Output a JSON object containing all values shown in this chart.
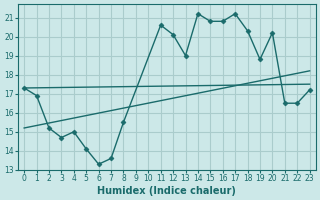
{
  "xlabel": "Humidex (Indice chaleur)",
  "bg_color": "#cce8e8",
  "grid_color": "#aacccc",
  "line_color": "#1a6b6b",
  "xlim": [
    -0.5,
    23.5
  ],
  "ylim": [
    13,
    21.7
  ],
  "yticks": [
    13,
    14,
    15,
    16,
    17,
    18,
    19,
    20,
    21
  ],
  "xticks": [
    0,
    1,
    2,
    3,
    4,
    5,
    6,
    7,
    8,
    9,
    10,
    11,
    12,
    13,
    14,
    15,
    16,
    17,
    18,
    19,
    20,
    21,
    22,
    23
  ],
  "data_line": {
    "x": [
      0,
      1,
      2,
      3,
      4,
      5,
      6,
      7,
      8,
      11,
      12,
      13,
      14,
      15,
      16,
      17,
      18,
      19,
      20,
      21,
      22,
      23
    ],
    "y": [
      17.3,
      16.9,
      15.2,
      14.7,
      15.0,
      14.1,
      13.3,
      13.6,
      15.5,
      20.6,
      20.1,
      19.0,
      21.2,
      20.8,
      20.8,
      21.2,
      20.3,
      18.8,
      20.2,
      16.5,
      16.5,
      17.2
    ]
  },
  "trend1": {
    "x": [
      0,
      23
    ],
    "y": [
      17.3,
      17.5
    ]
  },
  "trend2": {
    "x": [
      0,
      23
    ],
    "y": [
      15.2,
      18.2
    ]
  }
}
